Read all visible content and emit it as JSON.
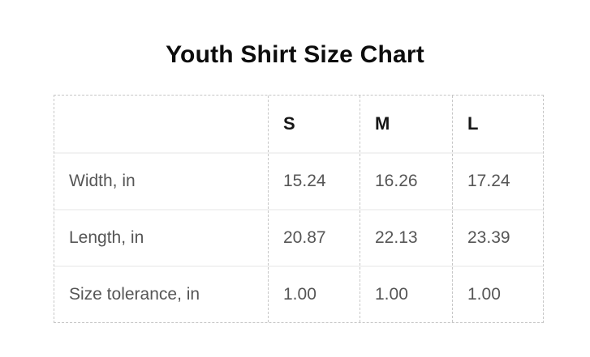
{
  "page": {
    "title": "Youth Shirt Size Chart"
  },
  "chart_data": {
    "type": "table",
    "title": "Youth Shirt Size Chart",
    "corner_label": "",
    "columns": [
      "S",
      "M",
      "L"
    ],
    "rows": [
      {
        "label": "Width, in",
        "values": [
          "15.24",
          "16.26",
          "17.24"
        ]
      },
      {
        "label": "Length, in",
        "values": [
          "20.87",
          "22.13",
          "23.39"
        ]
      },
      {
        "label": "Size tolerance, in",
        "values": [
          "1.00",
          "1.00",
          "1.00"
        ]
      }
    ],
    "layout": {
      "header_style": "bold",
      "grid": "dashed outer border and dashed column separators, light solid row separators",
      "value_alignment": "left"
    }
  },
  "colors": {
    "background": "#ffffff",
    "title": "#0d0d0d",
    "header_text": "#161616",
    "body_text": "#565656",
    "dashed_border": "#c7c7c7",
    "row_separator": "#f2f2f2"
  }
}
